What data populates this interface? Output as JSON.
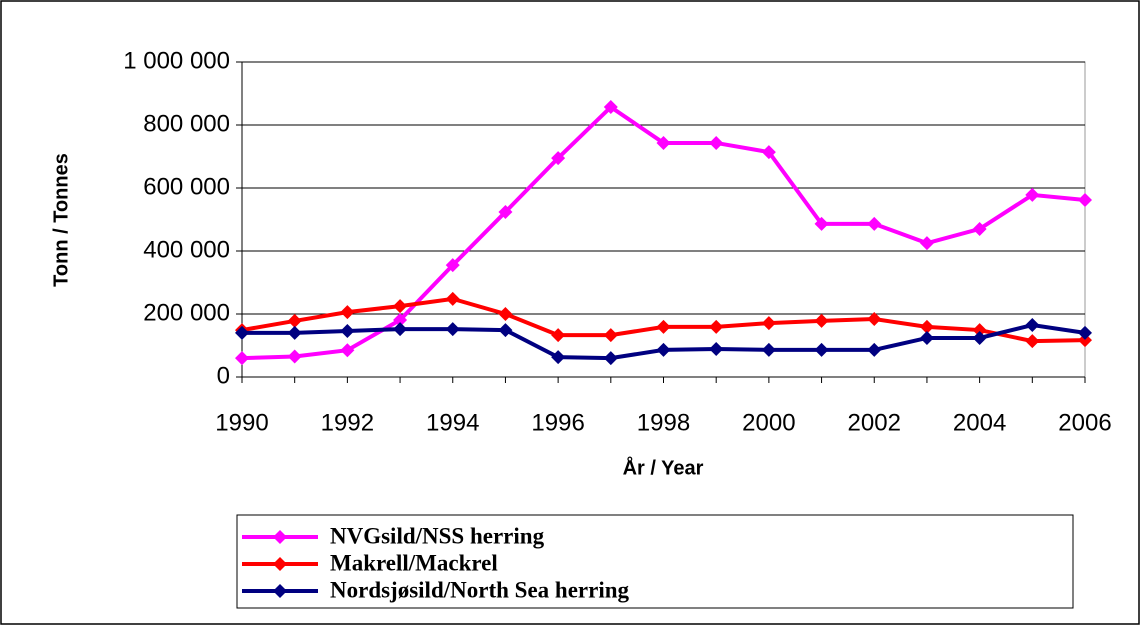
{
  "chart_data": {
    "type": "line",
    "x": [
      1990,
      1991,
      1992,
      1993,
      1994,
      1995,
      1996,
      1997,
      1998,
      1999,
      2000,
      2001,
      2002,
      2003,
      2004,
      2005,
      2006
    ],
    "series": [
      {
        "name": "NVGsild/NSS herring",
        "color": "#ff00ff",
        "values": [
          60000,
          65000,
          85000,
          181000,
          355000,
          524000,
          695000,
          857000,
          743000,
          743000,
          714000,
          486000,
          486000,
          425000,
          470000,
          578000,
          562000
        ]
      },
      {
        "name": "Makrell/Mackrel",
        "color": "#ff0000",
        "values": [
          149000,
          178000,
          206000,
          225000,
          248000,
          200000,
          133000,
          133000,
          159000,
          159000,
          171000,
          178000,
          184000,
          159000,
          149000,
          114000,
          117000
        ]
      },
      {
        "name": "Nordsjøsild/North Sea herring",
        "color": "#000080",
        "values": [
          140000,
          140000,
          146000,
          152000,
          152000,
          149000,
          63000,
          60000,
          86000,
          89000,
          86000,
          86000,
          86000,
          124000,
          124000,
          165000,
          140000
        ]
      }
    ],
    "xlim": [
      1990,
      2006
    ],
    "xticks": [
      1990,
      1992,
      1994,
      1996,
      1998,
      2000,
      2002,
      2004,
      2006
    ],
    "ylim": [
      0,
      1000000
    ],
    "yticks": [
      0,
      {
        "value": 200000,
        "label": "200 000"
      },
      {
        "value": 400000,
        "label": "400 000"
      },
      {
        "value": 600000,
        "label": "600 000"
      },
      {
        "value": 800000,
        "label": "800 000"
      },
      {
        "value": 1000000,
        "label": "1 000 000"
      }
    ],
    "xlabel": "År / Year",
    "ylabel": "Tonn / Tonnes",
    "grid": true,
    "legend": "bottom"
  }
}
